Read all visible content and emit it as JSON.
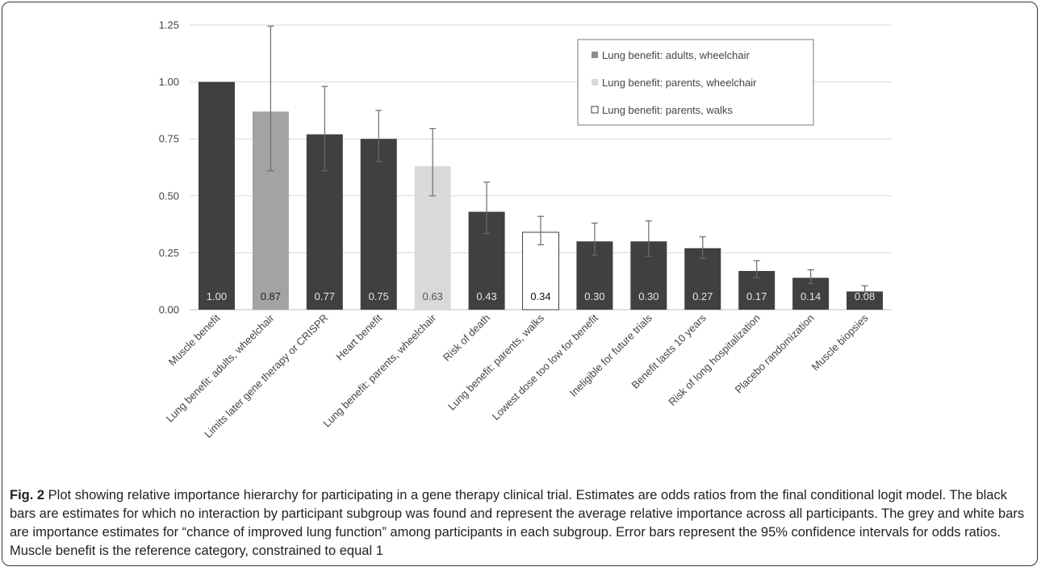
{
  "chart_data": {
    "type": "bar",
    "categories": [
      "Muscle benefit",
      "Lung benefit: adults, wheelchair",
      "Limits later gene therapy or CRISPR",
      "Heart benefit",
      "Lung benefit: parents, wheelchair",
      "Risk of death",
      "Lung benefit: parents, walks",
      "Lowest dose too low for benefit",
      "Ineligible for future trials",
      "Benefit lasts 10 years",
      "Risk of long hospitalization",
      "Placebo randomization",
      "Muscle biopsies"
    ],
    "values": [
      1.0,
      0.87,
      0.77,
      0.75,
      0.63,
      0.43,
      0.34,
      0.3,
      0.3,
      0.27,
      0.17,
      0.14,
      0.08
    ],
    "value_labels": [
      "1.00",
      "0.87",
      "0.77",
      "0.75",
      "0.63",
      "0.43",
      "0.34",
      "0.30",
      "0.30",
      "0.27",
      "0.17",
      "0.14",
      "0.08"
    ],
    "error_low": [
      null,
      0.61,
      0.61,
      0.65,
      0.5,
      0.335,
      0.285,
      0.24,
      0.235,
      0.225,
      0.14,
      0.115,
      0.065
    ],
    "error_high": [
      null,
      1.245,
      0.98,
      0.875,
      0.795,
      0.56,
      0.41,
      0.38,
      0.39,
      0.32,
      0.215,
      0.175,
      0.105
    ],
    "bar_group": [
      "black",
      "adults_wheelchair",
      "black",
      "black",
      "parents_wheelchair",
      "black",
      "parents_walks",
      "black",
      "black",
      "black",
      "black",
      "black",
      "black"
    ],
    "group_colors": {
      "black": "#404040",
      "adults_wheelchair": "#a3a3a3",
      "parents_wheelchair": "#d9d9d9",
      "parents_walks": "#ffffff"
    },
    "value_label_colors": {
      "black": "#e6e6e6",
      "adults_wheelchair": "#222222",
      "parents_wheelchair": "#555555",
      "parents_walks": "#111111"
    },
    "ylim": [
      0,
      1.25
    ],
    "yticks": [
      "0.00",
      "0.25",
      "0.50",
      "0.75",
      "1.00",
      "1.25"
    ],
    "grid": true,
    "legend_position": "top-right",
    "legend": [
      {
        "label": "Lung benefit: adults, wheelchair",
        "color": "#8c8c8c"
      },
      {
        "label": "Lung benefit: parents, wheelchair",
        "color": "#d9d9d9"
      },
      {
        "label": "Lung benefit: parents, walks",
        "color": "#ffffff"
      }
    ],
    "title": "",
    "xlabel": "",
    "ylabel": ""
  },
  "caption": {
    "label": "Fig. 2",
    "text": " Plot showing relative importance hierarchy for participating in a gene therapy clinical trial. Estimates are odds ratios from the final conditional logit model. The black bars are estimates for which no interaction by participant subgroup was found and represent the average relative importance across all participants. The grey and white bars are importance estimates for “chance of improved lung function” among participants in each subgroup. Error bars represent the 95% confidence intervals for odds ratios. Muscle benefit is the reference category, constrained to equal 1"
  }
}
